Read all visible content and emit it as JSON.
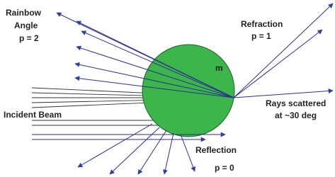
{
  "labels": {
    "rainbow": [
      "Rainbow",
      "Angle",
      "p = 2"
    ],
    "refraction": [
      "Refraction",
      "p = 1"
    ],
    "medium": "m",
    "incident": "Incident Beam",
    "scattered": [
      "Rays scattered",
      "at ~30 deg"
    ],
    "reflection": [
      "Reflection",
      "p = 0"
    ]
  }
}
